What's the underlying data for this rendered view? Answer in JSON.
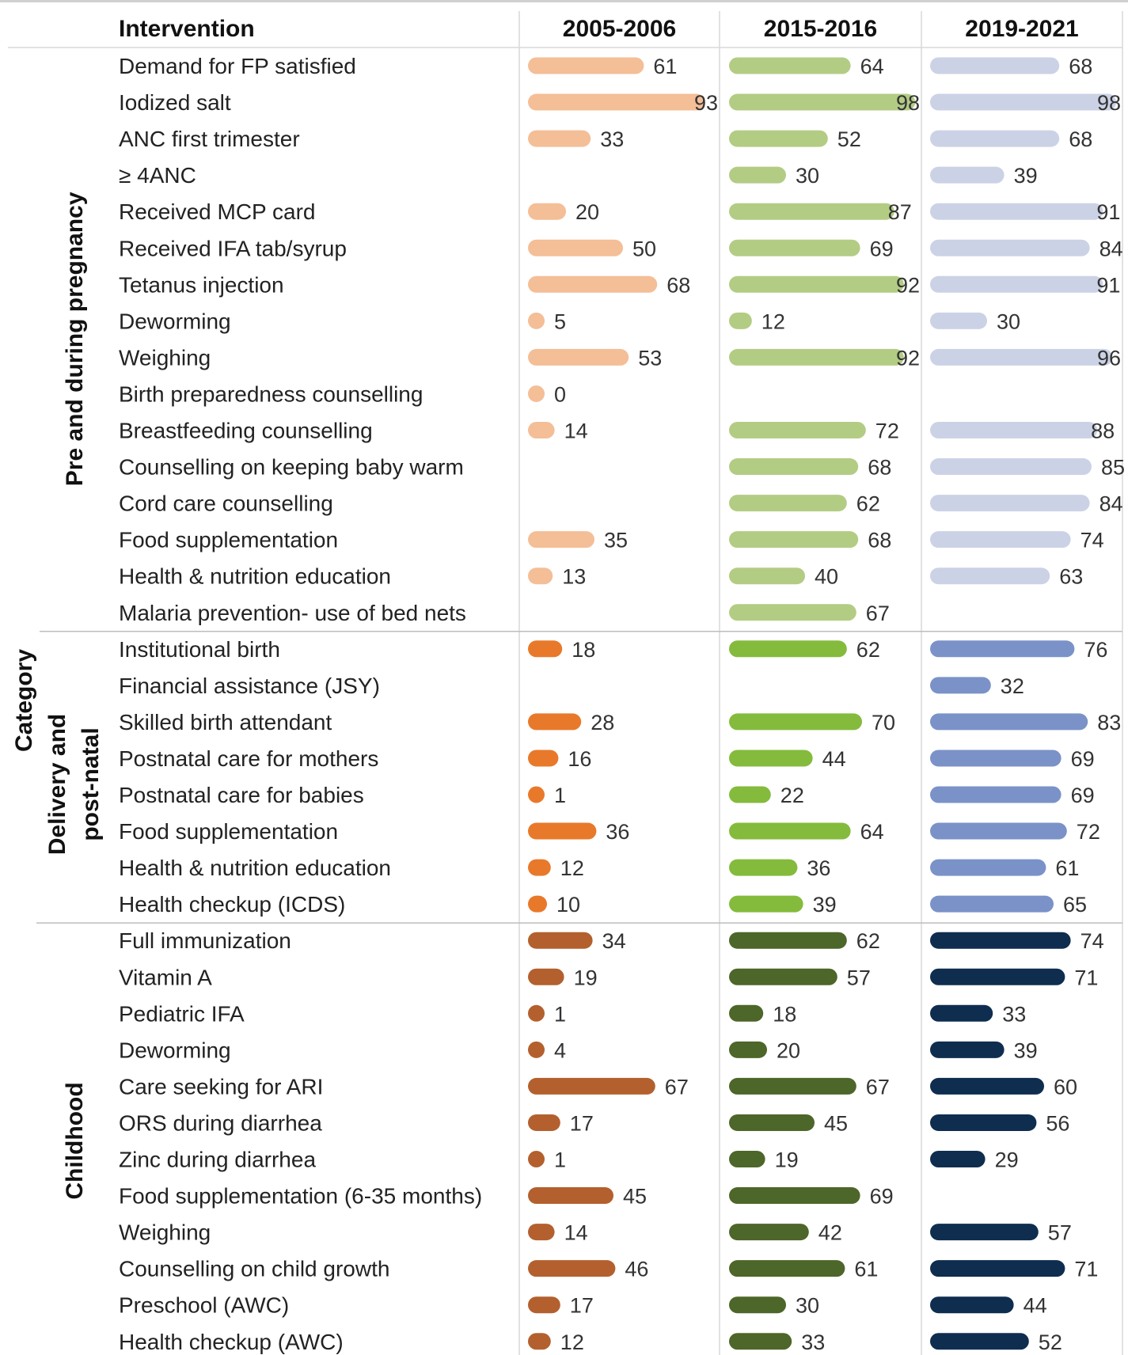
{
  "chart_data": {
    "type": "bar",
    "title": "",
    "xlabel": "",
    "ylabel": "Category",
    "column_header": "Intervention",
    "xlim": [
      0,
      100
    ],
    "series": [
      {
        "name": "2005-2006",
        "colors": {
          "Pre and during pregnancy": "#f4be97",
          "Delivery and post-natal": "#e8792a",
          "Childhood": "#b3602e"
        }
      },
      {
        "name": "2015-2016",
        "colors": {
          "Pre and during pregnancy": "#b3cc84",
          "Delivery and post-natal": "#84bb3c",
          "Childhood": "#4d6629"
        }
      },
      {
        "name": "2019-2021",
        "colors": {
          "Pre and during pregnancy": "#ccd2e6",
          "Delivery and post-natal": "#7a92c8",
          "Childhood": "#0f2d4f"
        }
      }
    ],
    "groups": [
      {
        "name": "Pre and during pregnancy",
        "rows": [
          {
            "label": "Demand for FP satisfied",
            "values": [
              61,
              64,
              68
            ]
          },
          {
            "label": "Iodized salt",
            "values": [
              93,
              98,
              98
            ]
          },
          {
            "label": "ANC first trimester",
            "values": [
              33,
              52,
              68
            ]
          },
          {
            "label": "≥ 4ANC",
            "values": [
              null,
              30,
              39
            ]
          },
          {
            "label": "Received MCP card",
            "values": [
              20,
              87,
              91
            ]
          },
          {
            "label": "Received IFA tab/syrup",
            "values": [
              50,
              69,
              84
            ]
          },
          {
            "label": "Tetanus injection",
            "values": [
              68,
              92,
              91
            ]
          },
          {
            "label": "Deworming",
            "values": [
              5,
              12,
              30
            ]
          },
          {
            "label": "Weighing",
            "values": [
              53,
              92,
              96
            ]
          },
          {
            "label": "Birth preparedness counselling",
            "values": [
              0,
              null,
              null
            ]
          },
          {
            "label": "Breastfeeding counselling",
            "values": [
              14,
              72,
              88
            ]
          },
          {
            "label": "Counselling on keeping baby warm",
            "values": [
              null,
              68,
              85
            ]
          },
          {
            "label": "Cord care counselling",
            "values": [
              null,
              62,
              84
            ]
          },
          {
            "label": "Food supplementation",
            "values": [
              35,
              68,
              74
            ]
          },
          {
            "label": "Health & nutrition education",
            "values": [
              13,
              40,
              63
            ]
          },
          {
            "label": "Malaria prevention- use of bed nets",
            "values": [
              null,
              67,
              null
            ]
          }
        ]
      },
      {
        "name": "Delivery and post-natal",
        "rows": [
          {
            "label": "Institutional birth",
            "values": [
              18,
              62,
              76
            ]
          },
          {
            "label": "Financial assistance (JSY)",
            "values": [
              null,
              null,
              32
            ]
          },
          {
            "label": "Skilled birth attendant",
            "values": [
              28,
              70,
              83
            ]
          },
          {
            "label": "Postnatal care for mothers",
            "values": [
              16,
              44,
              69
            ]
          },
          {
            "label": "Postnatal care for babies",
            "values": [
              1,
              22,
              69
            ]
          },
          {
            "label": "Food supplementation",
            "values": [
              36,
              64,
              72
            ]
          },
          {
            "label": "Health & nutrition education",
            "values": [
              12,
              36,
              61
            ]
          },
          {
            "label": "Health checkup (ICDS)",
            "values": [
              10,
              39,
              65
            ]
          }
        ]
      },
      {
        "name": "Childhood",
        "rows": [
          {
            "label": "Full immunization",
            "values": [
              34,
              62,
              74
            ]
          },
          {
            "label": "Vitamin A",
            "values": [
              19,
              57,
              71
            ]
          },
          {
            "label": "Pediatric  IFA",
            "values": [
              1,
              18,
              33
            ]
          },
          {
            "label": "Deworming",
            "values": [
              4,
              20,
              39
            ]
          },
          {
            "label": "Care seeking for ARI",
            "values": [
              67,
              67,
              60
            ]
          },
          {
            "label": "ORS during diarrhea",
            "values": [
              17,
              45,
              56
            ]
          },
          {
            "label": "Zinc during diarrhea",
            "values": [
              1,
              19,
              29
            ]
          },
          {
            "label": "Food supplementation (6-35 months)",
            "values": [
              45,
              69,
              null
            ]
          },
          {
            "label": "Weighing",
            "values": [
              14,
              42,
              57
            ]
          },
          {
            "label": "Counselling on child growth",
            "values": [
              46,
              61,
              71
            ]
          },
          {
            "label": "Preschool (AWC)",
            "values": [
              17,
              30,
              44
            ]
          },
          {
            "label": "Health checkup (AWC)",
            "values": [
              12,
              33,
              52
            ]
          }
        ]
      }
    ]
  }
}
